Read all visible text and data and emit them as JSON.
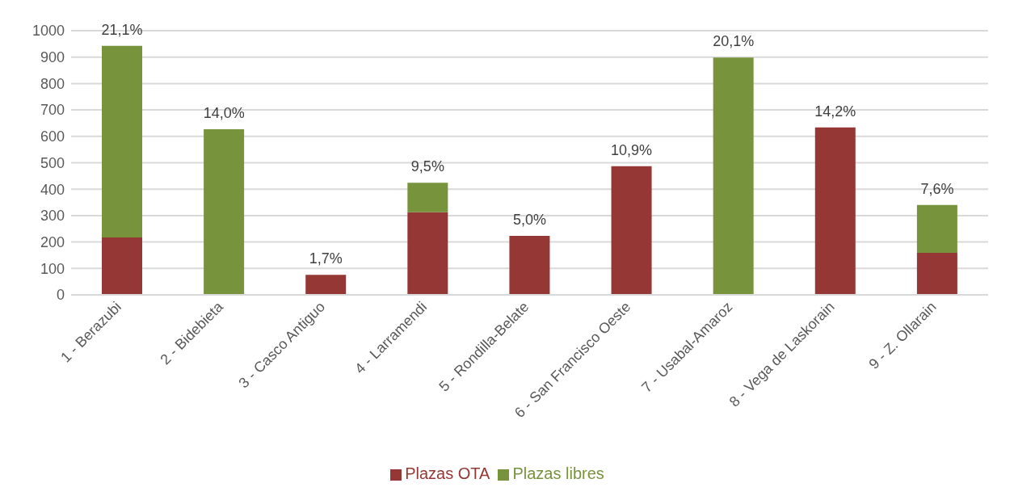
{
  "chart_data": {
    "type": "bar",
    "stacked": true,
    "categories": [
      "1 - Berazubi",
      "2 - Bidebieta",
      "3 - Casco Antiguo",
      "4 - Larramendi",
      "5 - Rondilla-Belate",
      "6 - San Francisco Oeste",
      "7 - Usabal-Amaroz",
      "8 - Vega de Laskorain",
      "9 - Z. Ollarain"
    ],
    "series": [
      {
        "name": "Plazas OTA",
        "color": "#953735",
        "values": [
          217,
          null,
          76,
          313,
          223,
          487,
          null,
          634,
          159
        ]
      },
      {
        "name": "Plazas libres",
        "color": "#77933c",
        "values": [
          726,
          627,
          null,
          111,
          null,
          null,
          898,
          null,
          181
        ]
      }
    ],
    "ylim": [
      0,
      1000
    ],
    "yticks": [
      0,
      100,
      200,
      300,
      400,
      500,
      600,
      700,
      800,
      900,
      1000
    ],
    "grid": "y",
    "legend": "bottom",
    "annotations": [
      {
        "text": "21,1%",
        "x": "1 - Berazubi",
        "y": 943
      },
      {
        "text": "14,0%",
        "x": "2 - Bidebieta",
        "y": 627
      },
      {
        "text": "1,7%",
        "x": "3 - Casco Antiguo",
        "y": 76
      },
      {
        "text": "9,5%",
        "x": "4 - Larramendi",
        "y": 424
      },
      {
        "text": "5,0%",
        "x": "5 - Rondilla-Belate",
        "y": 223
      },
      {
        "text": "10,9%",
        "x": "6 - San Francisco Oeste",
        "y": 487
      },
      {
        "text": "20,1%",
        "x": "7 - Usabal-Amaroz",
        "y": 898
      },
      {
        "text": "14,2%",
        "x": "8 - Vega de Laskorain",
        "y": 634
      },
      {
        "text": "7,6%",
        "x": "9 - Z. Ollarain",
        "y": 340
      }
    ]
  }
}
